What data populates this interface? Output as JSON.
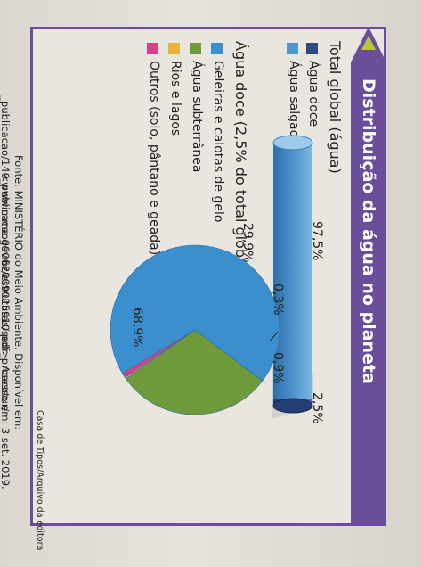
{
  "title": "Distribuição da água no planeta",
  "total_heading": "Total global (água)",
  "doce_heading": "Água doce (2,5% do total global)",
  "legend_total": [
    {
      "label": "Água doce",
      "color": "#2f4c86"
    },
    {
      "label": "Água salgada",
      "color": "#4f97cf"
    }
  ],
  "legend_doce": [
    {
      "label": "Geleiras e calotas de gelo",
      "color": "#3c8fcd"
    },
    {
      "label": "Água subterrânea",
      "color": "#6f9a3c"
    },
    {
      "label": "Rios e lagos",
      "color": "#e8b33a"
    },
    {
      "label": "Outros (solo, pântano e geada)",
      "color": "#d9408a"
    }
  ],
  "source_line1": "Fonte: MINISTÉRIO do Meio Ambiente. Disponível em: <www.mma.gov.br/estruturas/sedr_proecotur/",
  "source_line2": "_publicacao/140_publicacao09062009025910.pdf>. Acesso em: 3 set. 2019.",
  "credit": "Casa de Tipos/Arquivo da editora",
  "chart_data": [
    {
      "type": "bar",
      "categories": [
        "Água salgada",
        "Água doce"
      ],
      "values": [
        97.5,
        2.5
      ],
      "labels": [
        "97,5%",
        "2,5%"
      ]
    },
    {
      "type": "pie",
      "categories": [
        "Geleiras e calotas de gelo",
        "Água subterrânea",
        "Rios e lagos",
        "Outros (solo, pântano e geada)"
      ],
      "values": [
        68.9,
        29.9,
        0.3,
        0.9
      ],
      "labels": [
        "68,9%",
        "29,9%",
        "0,3%",
        "0,9%"
      ]
    }
  ]
}
